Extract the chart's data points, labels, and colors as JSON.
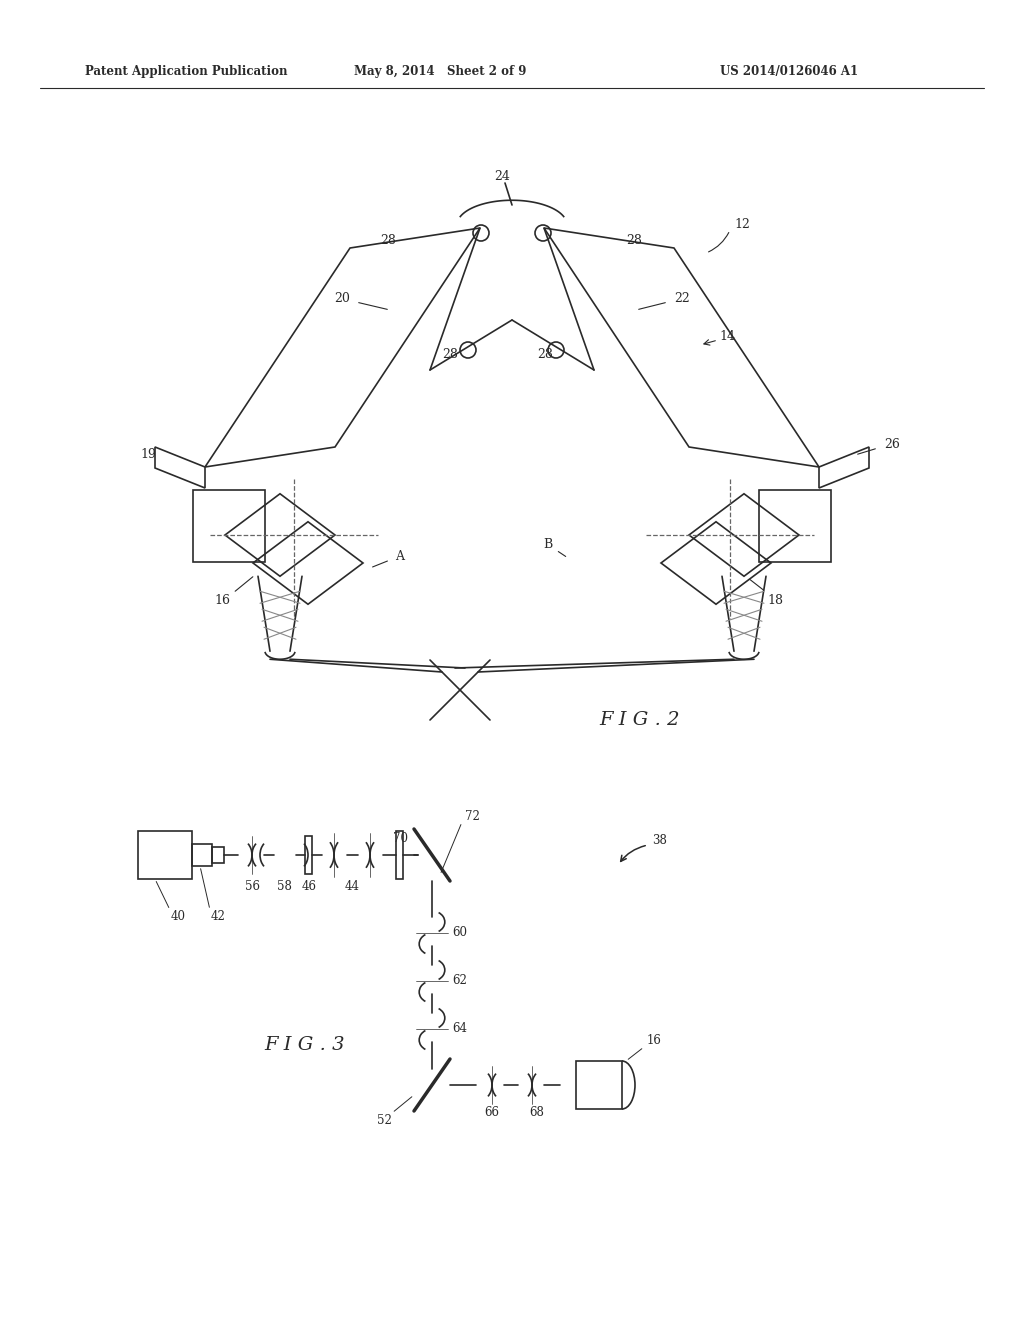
{
  "header_left": "Patent Application Publication",
  "header_mid": "May 8, 2014   Sheet 2 of 9",
  "header_right": "US 2014/0126046 A1",
  "fig2_caption": "F I G . 2",
  "fig3_caption": "F I G . 3",
  "bg_color": "#ffffff",
  "line_color": "#2a2a2a"
}
